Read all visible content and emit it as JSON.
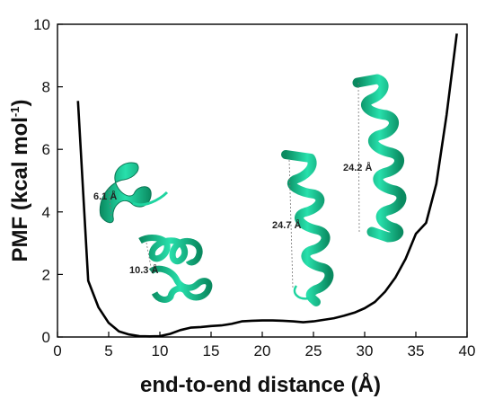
{
  "chart_data": {
    "type": "line",
    "xlabel": "end-to-end distance (Å)",
    "ylabel_main": "PMF (kcal mol",
    "ylabel_sup": "-1",
    "ylabel_close": ")",
    "xlim": [
      0,
      40
    ],
    "ylim": [
      0,
      10
    ],
    "x_ticks": [
      0,
      5,
      10,
      15,
      20,
      25,
      30,
      35,
      40
    ],
    "y_ticks": [
      0,
      2,
      4,
      6,
      8,
      10
    ],
    "grid": false,
    "series": [
      {
        "color": "#000000",
        "x": [
          2,
          3,
          4,
          5,
          6,
          7,
          8,
          9,
          10,
          11,
          12,
          13,
          14,
          15,
          16,
          17,
          18,
          19,
          20,
          21,
          22,
          23,
          24,
          25,
          26,
          27,
          28,
          29,
          30,
          31,
          32,
          33,
          34,
          35,
          36,
          37,
          38,
          39
        ],
        "values": [
          7.55,
          1.8,
          0.95,
          0.45,
          0.18,
          0.08,
          0.03,
          0.02,
          0.03,
          0.1,
          0.22,
          0.3,
          0.32,
          0.35,
          0.37,
          0.42,
          0.5,
          0.52,
          0.53,
          0.53,
          0.52,
          0.5,
          0.47,
          0.5,
          0.55,
          0.6,
          0.68,
          0.78,
          0.92,
          1.12,
          1.45,
          1.9,
          2.5,
          3.3,
          3.65,
          4.9,
          7.1,
          9.7
        ]
      }
    ],
    "annotations": [
      "6.1 Å",
      "10.3 Å",
      "24.7 Å",
      "24.2 Å"
    ]
  },
  "colors": {
    "ribbon": "#1fd4a0",
    "ribbon_dark": "#0b8d63",
    "line": "#000000"
  }
}
